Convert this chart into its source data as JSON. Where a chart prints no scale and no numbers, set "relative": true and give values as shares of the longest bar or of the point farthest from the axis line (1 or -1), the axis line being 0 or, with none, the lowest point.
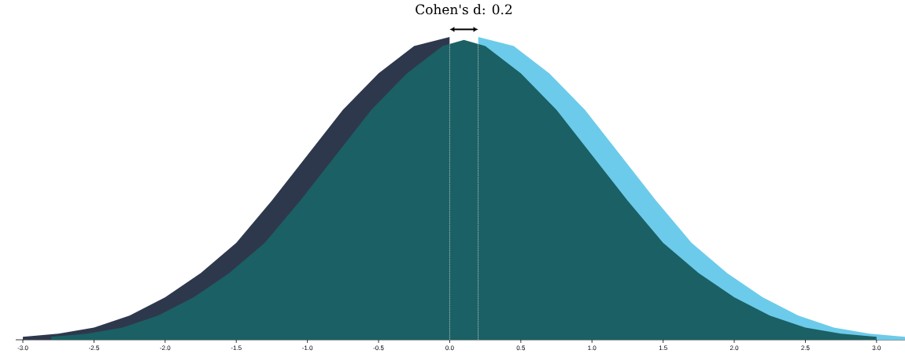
{
  "chart_data": {
    "type": "area",
    "title": "Cohen's d: 0.2",
    "relative": true,
    "xlim": [
      -3.05,
      3.2
    ],
    "xticks": [
      {
        "value": -3,
        "label": "-3.0"
      },
      {
        "value": -2.5,
        "label": "-2.5"
      },
      {
        "value": -2,
        "label": "-2.0"
      },
      {
        "value": -1.5,
        "label": "-1.5"
      },
      {
        "value": -1,
        "label": "-1.0"
      },
      {
        "value": -0.5,
        "label": "-0.5"
      },
      {
        "value": 0,
        "label": "0.0"
      },
      {
        "value": 0.5,
        "label": "0.5"
      },
      {
        "value": 1,
        "label": "1.0"
      },
      {
        "value": 1.5,
        "label": "1.5"
      },
      {
        "value": 2,
        "label": "2.0"
      },
      {
        "value": 2.5,
        "label": "2.5"
      },
      {
        "value": 3,
        "label": "3.0"
      }
    ],
    "grid": false,
    "series": [
      {
        "color": "#6ccbea",
        "x": [
          0.2,
          0.45,
          0.7,
          0.95,
          1.2,
          1.45,
          1.7,
          1.95,
          2.2,
          2.45,
          2.7,
          2.95,
          3.2
        ],
        "values": [
          1.0,
          0.97,
          0.88,
          0.76,
          0.61,
          0.46,
          0.32,
          0.22,
          0.14,
          0.08,
          0.04,
          0.02,
          0.01
        ]
      },
      {
        "color": "#2e384d",
        "x": [
          -3,
          -2.75,
          -2.5,
          -2.25,
          -2,
          -1.75,
          -1.5,
          -1.25,
          -1,
          -0.75,
          -0.5,
          -0.25,
          0
        ],
        "values": [
          0.01,
          0.02,
          0.04,
          0.08,
          0.14,
          0.22,
          0.32,
          0.46,
          0.61,
          0.76,
          0.88,
          0.97,
          1.0
        ]
      },
      {
        "color": "#1b6064",
        "x": [
          -2.8,
          -2.55,
          -2.3,
          -2.05,
          -1.8,
          -1.55,
          -1.3,
          -1.05,
          -0.8,
          -0.55,
          -0.3,
          -0.05,
          0.1,
          0.25,
          0.5,
          0.75,
          1,
          1.25,
          1.5,
          1.75,
          2,
          2.25,
          2.5,
          2.75,
          3
        ],
        "values": [
          0.01,
          0.02,
          0.04,
          0.08,
          0.14,
          0.22,
          0.32,
          0.46,
          0.61,
          0.76,
          0.88,
          0.97,
          0.99,
          0.97,
          0.88,
          0.76,
          0.61,
          0.46,
          0.32,
          0.22,
          0.14,
          0.08,
          0.04,
          0.02,
          0.01
        ]
      }
    ],
    "ref_lines": [
      {
        "axis": "x",
        "value": 0,
        "color": "#ffffff",
        "line_style": "dotted"
      },
      {
        "axis": "x",
        "value": 0.2,
        "color": "#ffffff",
        "line_style": "dotted"
      }
    ]
  }
}
